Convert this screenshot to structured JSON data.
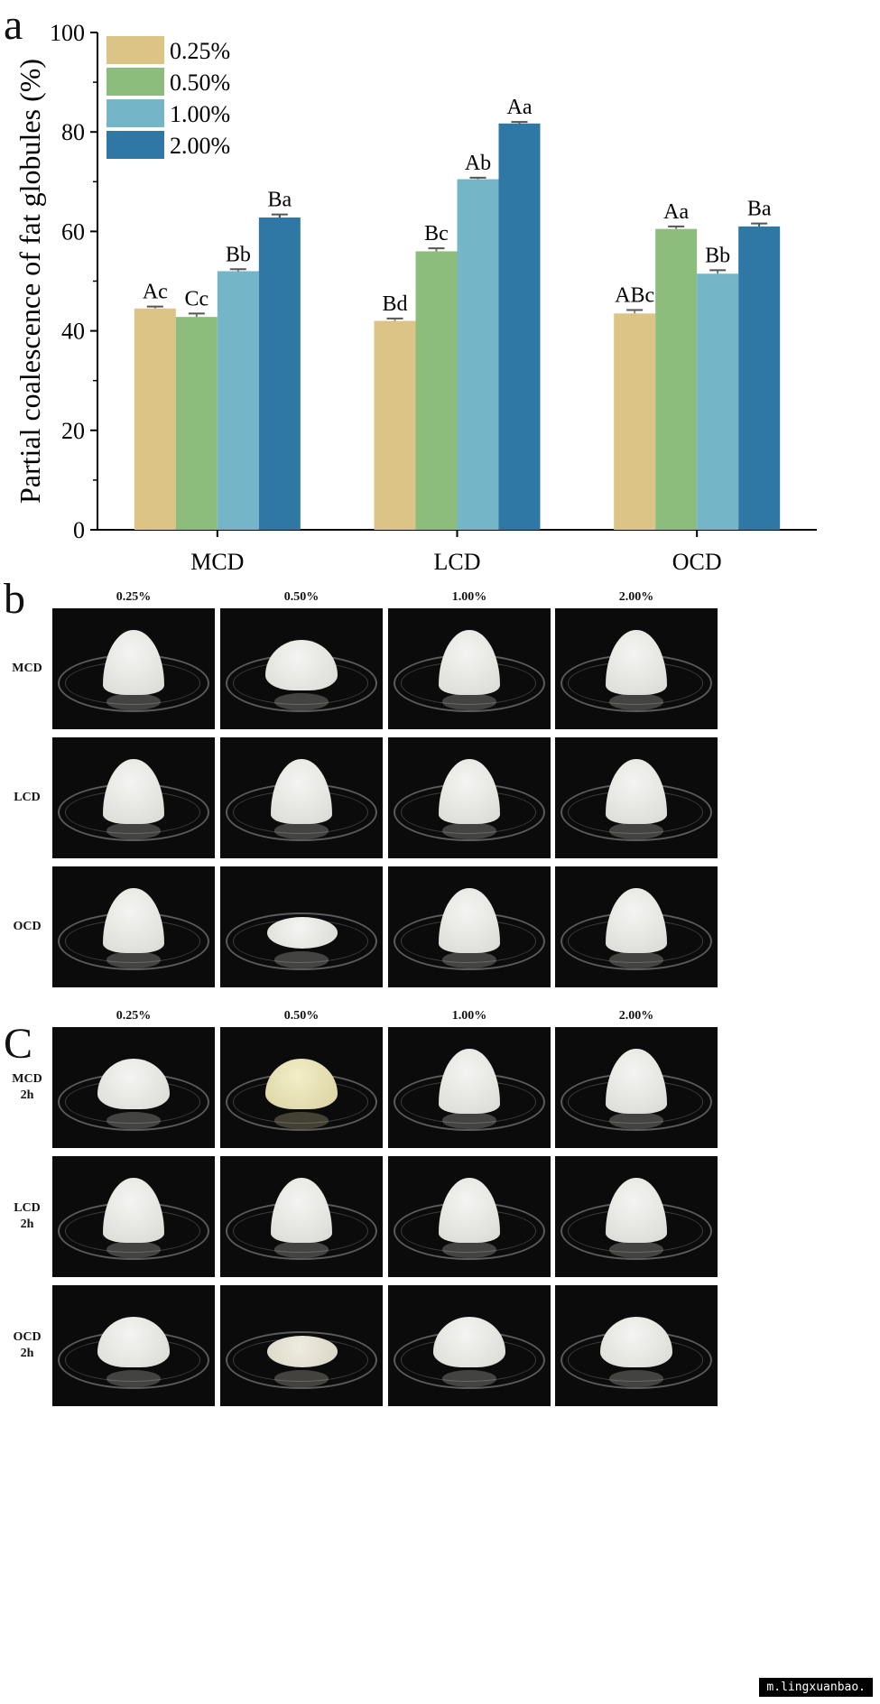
{
  "panel_labels": {
    "a": "a",
    "b": "b",
    "c": "C"
  },
  "chart_data": {
    "type": "bar",
    "categories": [
      "MCD",
      "LCD",
      "OCD"
    ],
    "ylabel": "Partial coalescence of fat globules (%)",
    "xlabel": "",
    "ylim": [
      0,
      100
    ],
    "yticks": [
      0,
      20,
      40,
      60,
      80,
      100
    ],
    "legend_position": "top-left",
    "series": [
      {
        "name": "0.25%",
        "color": "#dcc487",
        "values": [
          44.5,
          42.0,
          43.5
        ],
        "errors": [
          0.4,
          0.5,
          0.7
        ],
        "labels": [
          "Ac",
          "Bd",
          "ABc"
        ]
      },
      {
        "name": "0.50%",
        "color": "#8cbd7c",
        "values": [
          42.8,
          56.0,
          60.5
        ],
        "errors": [
          0.7,
          0.6,
          0.5
        ],
        "labels": [
          "Cc",
          "Bc",
          "Aa"
        ]
      },
      {
        "name": "1.00%",
        "color": "#74b5c8",
        "values": [
          52.0,
          70.5,
          51.5
        ],
        "errors": [
          0.4,
          0.3,
          0.7
        ],
        "labels": [
          "Bb",
          "Ab",
          "Bb"
        ]
      },
      {
        "name": "2.00%",
        "color": "#2f78a5",
        "values": [
          62.8,
          81.7,
          61.0
        ],
        "errors": [
          0.6,
          0.3,
          0.6
        ],
        "labels": [
          "Ba",
          "Aa",
          "Ba"
        ]
      }
    ]
  },
  "panel_b": {
    "columns": [
      "0.25%",
      "0.50%",
      "1.00%",
      "2.00%"
    ],
    "rows": [
      "MCD",
      "LCD",
      "OCD"
    ],
    "cells": [
      [
        "peaked foam",
        "rounded foam",
        "peaked foam",
        "peaked foam"
      ],
      [
        "peaked foam",
        "peaked foam",
        "peaked foam",
        "peaked foam"
      ],
      [
        "peaked foam",
        "flat puddle",
        "peaked foam",
        "peaked foam"
      ]
    ]
  },
  "panel_c": {
    "columns": [
      "0.25%",
      "0.50%",
      "1.00%",
      "2.00%"
    ],
    "rows": [
      {
        "line1": "MCD",
        "line2": "2h"
      },
      {
        "line1": "LCD",
        "line2": "2h"
      },
      {
        "line1": "OCD",
        "line2": "2h"
      }
    ],
    "cells": [
      [
        "low foam",
        "yellowish foam",
        "peaked foam",
        "peaked foam"
      ],
      [
        "peaked foam",
        "peaked foam",
        "peaked foam",
        "peaked foam"
      ],
      [
        "low foam",
        "flat puddle",
        "low foam",
        "low foam"
      ]
    ]
  },
  "watermark": "m.lingxuanbao."
}
